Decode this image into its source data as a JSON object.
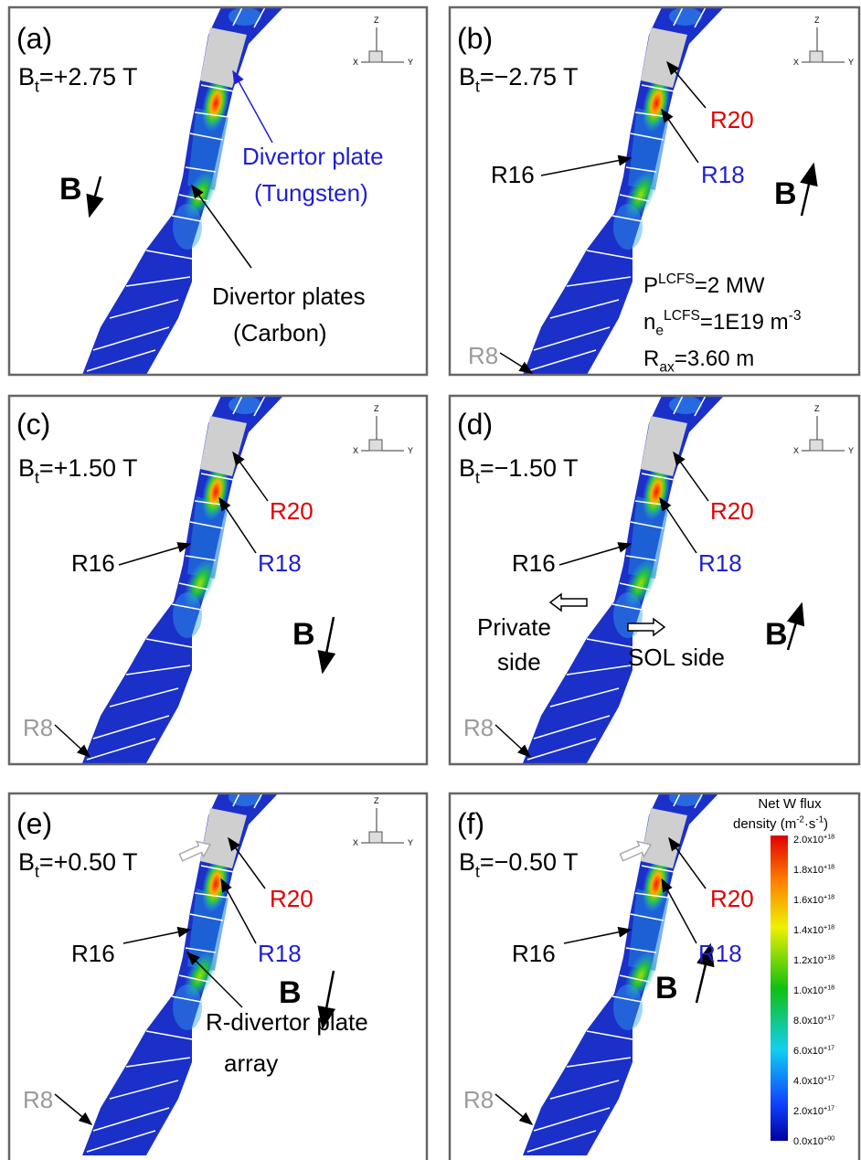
{
  "panels": [
    {
      "label": "(a)",
      "field": {
        "symbol": "B",
        "subscript": "t",
        "value": "=+2.75 T"
      },
      "b_label": "B",
      "annotations": [
        {
          "text": "Divertor plate",
          "color": "#1f1fd0"
        },
        {
          "text": "(Tungsten)",
          "color": "#1f1fd0"
        },
        {
          "text": "Divertor plates",
          "color": "#000000"
        },
        {
          "text": "(Carbon)",
          "color": "#000000"
        }
      ]
    },
    {
      "label": "(b)",
      "field": {
        "symbol": "B",
        "subscript": "t",
        "value": "=−2.75 T"
      },
      "b_label": "B",
      "annotations": [
        {
          "text": "R20",
          "color": "#e00000"
        },
        {
          "text": "R18",
          "color": "#1f1fd0"
        },
        {
          "text": "R16",
          "color": "#000000"
        },
        {
          "text": "R8",
          "color": "#9a9a9a"
        }
      ],
      "parameters": [
        {
          "base": "P",
          "sup": "LCFS",
          "rest": "=2 MW"
        },
        {
          "base": "n",
          "sub": "e",
          "sup": "LCFS",
          "rest": "=1E19 m",
          "sup2": "-3"
        },
        {
          "base": "R",
          "sub": "ax",
          "rest": "=3.60 m"
        }
      ]
    },
    {
      "label": "(c)",
      "field": {
        "symbol": "B",
        "subscript": "t",
        "value": "=+1.50 T"
      },
      "b_label": "B",
      "annotations": [
        {
          "text": "R20",
          "color": "#e00000"
        },
        {
          "text": "R18",
          "color": "#1f1fd0"
        },
        {
          "text": "R16",
          "color": "#000000"
        },
        {
          "text": "R8",
          "color": "#9a9a9a"
        }
      ]
    },
    {
      "label": "(d)",
      "field": {
        "symbol": "B",
        "subscript": "t",
        "value": "=−1.50 T"
      },
      "b_label": "B",
      "annotations": [
        {
          "text": "R20",
          "color": "#e00000"
        },
        {
          "text": "R18",
          "color": "#1f1fd0"
        },
        {
          "text": "R16",
          "color": "#000000"
        },
        {
          "text": "R8",
          "color": "#9a9a9a"
        },
        {
          "text": "Private",
          "color": "#000000"
        },
        {
          "text": "side",
          "color": "#000000"
        },
        {
          "text": "SOL side",
          "color": "#000000"
        }
      ]
    },
    {
      "label": "(e)",
      "field": {
        "symbol": "B",
        "subscript": "t",
        "value": "=+0.50 T"
      },
      "b_label": "B",
      "annotations": [
        {
          "text": "R20",
          "color": "#e00000"
        },
        {
          "text": "R18",
          "color": "#1f1fd0"
        },
        {
          "text": "R16",
          "color": "#000000"
        },
        {
          "text": "R8",
          "color": "#9a9a9a"
        },
        {
          "text": "R-divertor plate",
          "color": "#000000"
        },
        {
          "text": "array",
          "color": "#000000"
        }
      ]
    },
    {
      "label": "(f)",
      "field": {
        "symbol": "B",
        "subscript": "t",
        "value": "=−0.50 T"
      },
      "b_label": "B",
      "annotations": [
        {
          "text": "R20",
          "color": "#e00000"
        },
        {
          "text": "R18",
          "color": "#1f1fd0"
        },
        {
          "text": "R16",
          "color": "#000000"
        },
        {
          "text": "R8",
          "color": "#9a9a9a"
        }
      ]
    }
  ],
  "axes_icon": {
    "z": "Z",
    "x": "X",
    "y": "Y"
  },
  "colorbar": {
    "title": {
      "line1": "Net W flux",
      "line2": "density (m",
      "sup1": "-2",
      "mid": "·s",
      "sup2": "-1",
      "end": ")"
    },
    "ticks": [
      {
        "mantissa": "2.0x10",
        "exponent": "+18"
      },
      {
        "mantissa": "1.8x10",
        "exponent": "+18"
      },
      {
        "mantissa": "1.6x10",
        "exponent": "+18"
      },
      {
        "mantissa": "1.4x10",
        "exponent": "+18"
      },
      {
        "mantissa": "1.2x10",
        "exponent": "+18"
      },
      {
        "mantissa": "1.0x10",
        "exponent": "+18"
      },
      {
        "mantissa": "8.0x10",
        "exponent": "+17"
      },
      {
        "mantissa": "6.0x10",
        "exponent": "+17"
      },
      {
        "mantissa": "4.0x10",
        "exponent": "+17"
      },
      {
        "mantissa": "2.0x10",
        "exponent": "+17"
      },
      {
        "mantissa": "0.0x10",
        "exponent": "+00"
      }
    ]
  }
}
